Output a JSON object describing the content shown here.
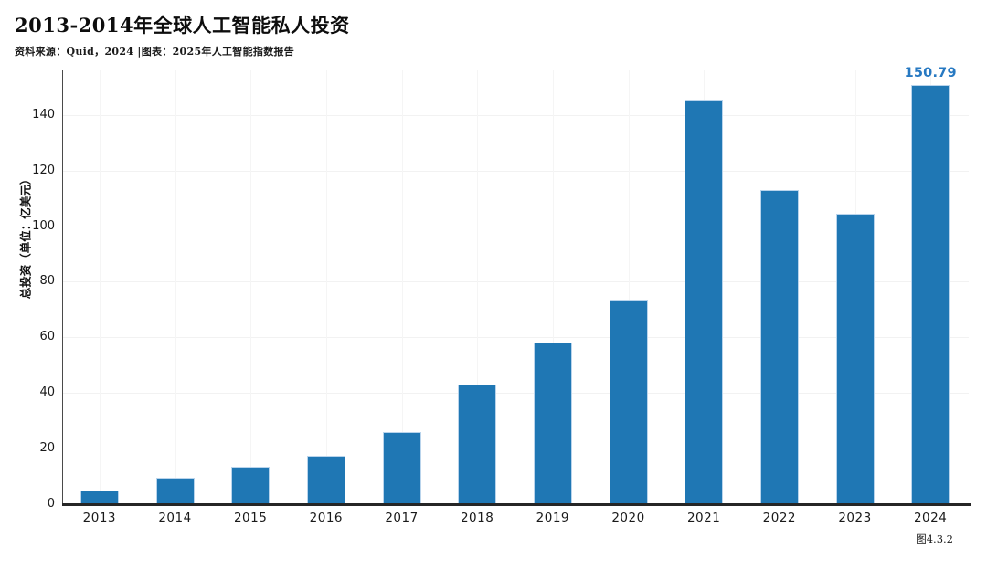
{
  "header": {
    "title": "2013-2014年全球人工智能私人投资",
    "source": "资料来源：Quid，2024 |图表：2025年人工智能指数报告"
  },
  "footer": {
    "caption": "图4.3.2"
  },
  "chart_data": {
    "type": "bar",
    "title": "2013-2014年全球人工智能私人投资",
    "source_note": "资料来源：Quid，2024 |图表：2025年人工智能指数报告",
    "categories": [
      "2013",
      "2014",
      "2015",
      "2016",
      "2017",
      "2018",
      "2019",
      "2020",
      "2021",
      "2022",
      "2023",
      "2024"
    ],
    "values": [
      4.9,
      9.4,
      13.3,
      17.2,
      25.8,
      42.9,
      58,
      73.5,
      145.1,
      112.9,
      104.4,
      150.79
    ],
    "xlabel": "",
    "ylabel": "总投资（单位：亿美元）",
    "yticks": [
      0,
      20,
      40,
      60,
      80,
      100,
      120,
      140
    ],
    "ylim": [
      0,
      156
    ],
    "grid": "on",
    "legend": "none",
    "bar_color": "#1f77b4",
    "bar_edge_color": "#b9d4ec",
    "annotation": {
      "category": "2024",
      "text": "150.79",
      "color": "#2779c2"
    },
    "caption": "图4.3.2"
  }
}
